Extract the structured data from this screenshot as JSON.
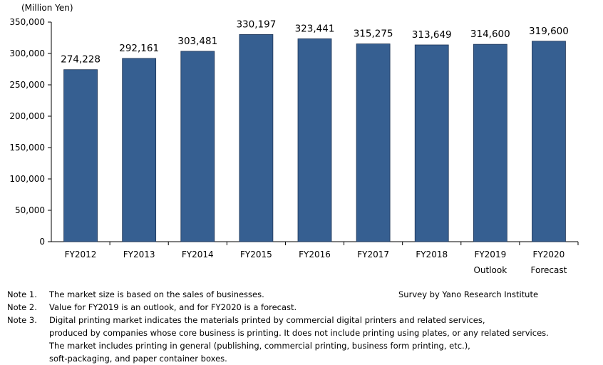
{
  "chart_data": {
    "type": "bar",
    "unit_label": "(Million Yen)",
    "categories": [
      "FY2012",
      "FY2013",
      "FY2014",
      "FY2015",
      "FY2016",
      "FY2017",
      "FY2018",
      "FY2019",
      "FY2020"
    ],
    "sublabels": [
      "",
      "",
      "",
      "",
      "",
      "",
      "",
      "Outlook",
      "Forecast"
    ],
    "values": [
      274228,
      292161,
      303481,
      330197,
      323441,
      315275,
      313649,
      314600,
      319600
    ],
    "value_labels": [
      "274,228",
      "292,161",
      "303,481",
      "330,197",
      "323,441",
      "315,275",
      "313,649",
      "314,600",
      "319,600"
    ],
    "y_ticks": [
      0,
      50000,
      100000,
      150000,
      200000,
      250000,
      300000,
      350000
    ],
    "y_tick_labels": [
      "0",
      "50,000",
      "100,000",
      "150,000",
      "200,000",
      "250,000",
      "300,000",
      "350,000"
    ],
    "ylim": [
      0,
      350000
    ],
    "bar_color": "#365f91",
    "grid": false
  },
  "notes": [
    {
      "label": "Note 1.",
      "lines": [
        "The market size is based on the sales of businesses."
      ]
    },
    {
      "label": "Note 2.",
      "lines": [
        "Value for FY2019 is an outlook, and for FY2020 is a forecast."
      ]
    },
    {
      "label": "Note 3.",
      "lines": [
        "Digital printing market indicates the materials printed by commercial digital printers and related services,",
        "produced by companies whose core business is printing. It does not include printing using plates, or any related services.",
        "The market includes printing in general (publishing, commercial printing, business form printing, etc.),",
        "soft-packaging, and paper container boxes."
      ]
    }
  ],
  "source": "Survey by Yano Research Institute"
}
